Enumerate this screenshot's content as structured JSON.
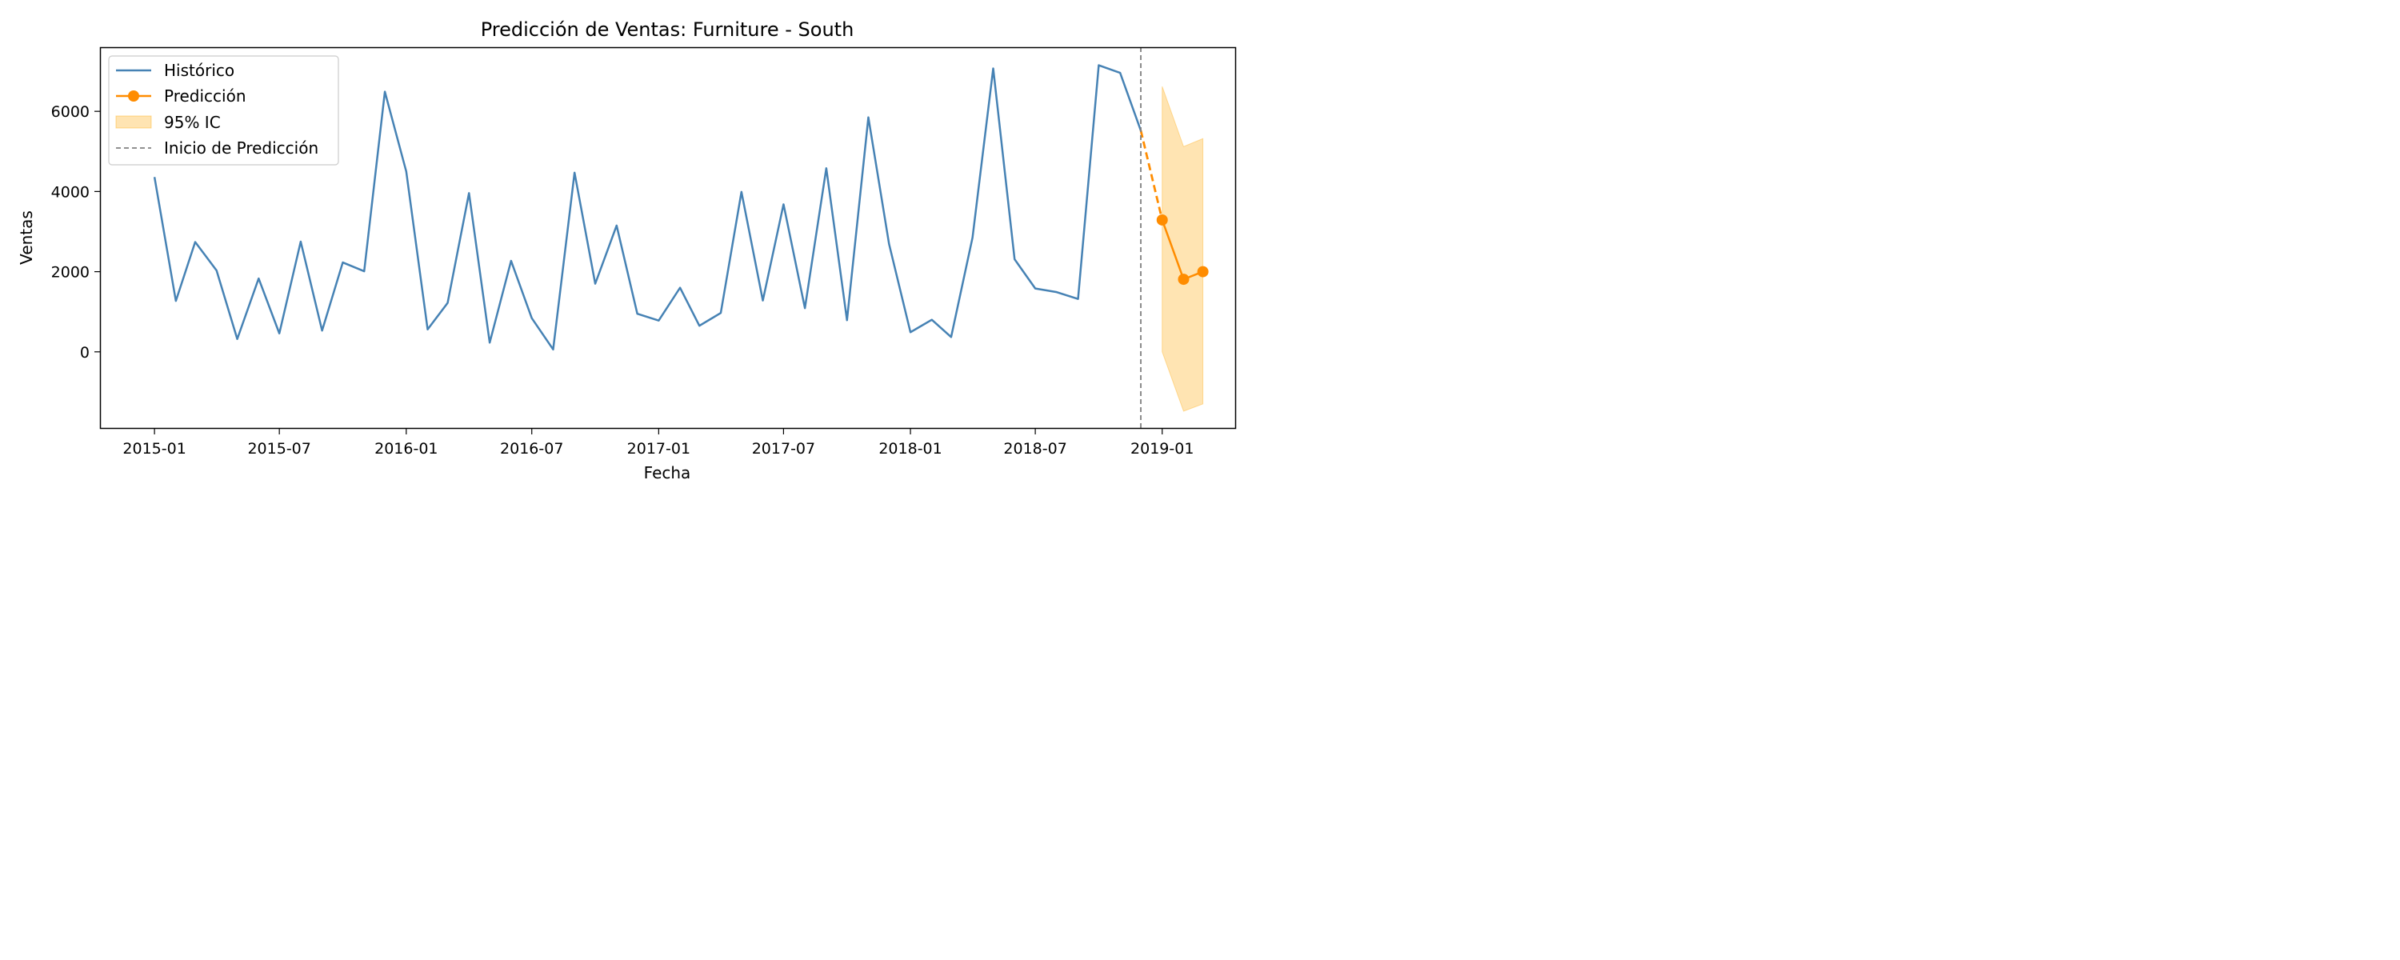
{
  "chart_data": {
    "type": "line",
    "title": "Predicción de Ventas: Furniture - South",
    "xlabel": "Fecha",
    "ylabel": "Ventas",
    "x_tick_labels": [
      "2015-01",
      "2015-07",
      "2016-01",
      "2016-07",
      "2017-01",
      "2017-07",
      "2018-01",
      "2018-07",
      "2019-01"
    ],
    "y_tick_labels": [
      "0",
      "2000",
      "4000",
      "6000"
    ],
    "y_ticks": [
      0,
      2000,
      4000,
      6000
    ],
    "xlim": [
      "2014-10-14",
      "2019-04-18"
    ],
    "ylim": [
      -1920,
      7600
    ],
    "grid": false,
    "legend_position": "top-left",
    "legend": [
      "Histórico",
      "Predicción",
      "95% IC",
      "Inicio de Predicción"
    ],
    "colors": {
      "historico": "#4682b4",
      "prediccion": "#ff8c00",
      "ic": "#ffa500",
      "inicio": "#808080"
    },
    "series": [
      {
        "name": "Histórico",
        "x": [
          "2015-01",
          "2015-02",
          "2015-03",
          "2015-04",
          "2015-05",
          "2015-06",
          "2015-07",
          "2015-08",
          "2015-09",
          "2015-10",
          "2015-11",
          "2015-12",
          "2016-01",
          "2016-02",
          "2016-03",
          "2016-04",
          "2016-05",
          "2016-06",
          "2016-07",
          "2016-08",
          "2016-09",
          "2016-10",
          "2016-11",
          "2016-12",
          "2017-01",
          "2017-02",
          "2017-03",
          "2017-04",
          "2017-05",
          "2017-06",
          "2017-07",
          "2017-08",
          "2017-09",
          "2017-10",
          "2017-11",
          "2017-12",
          "2018-01",
          "2018-02",
          "2018-03",
          "2018-04",
          "2018-05",
          "2018-06",
          "2018-07",
          "2018-08",
          "2018-09",
          "2018-10",
          "2018-11",
          "2018-12"
        ],
        "values": [
          4360,
          1270,
          2740,
          2030,
          320,
          1830,
          460,
          2750,
          530,
          2230,
          2010,
          6490,
          4500,
          560,
          1220,
          3960,
          230,
          2270,
          840,
          60,
          4470,
          1700,
          3150,
          950,
          780,
          1600,
          650,
          970,
          3990,
          1280,
          3680,
          1090,
          4580,
          790,
          5850,
          2690,
          490,
          800,
          370,
          2850,
          7070,
          2310,
          1580,
          1490,
          1320,
          7150,
          6960,
          5520
        ]
      },
      {
        "name": "Predicción",
        "x": [
          "2019-01",
          "2019-02",
          "2019-03"
        ],
        "values": [
          3290,
          1810,
          2000
        ]
      },
      {
        "name": "95% IC",
        "x": [
          "2019-01",
          "2019-02",
          "2019-03"
        ],
        "lower": [
          0,
          -1480,
          -1300
        ],
        "upper": [
          6620,
          5120,
          5320
        ]
      }
    ],
    "connector": {
      "x": [
        "2018-12",
        "2019-01"
      ],
      "values": [
        5520,
        3290
      ]
    },
    "vline": {
      "name": "Inicio de Predicción",
      "x": "2018-12"
    }
  }
}
